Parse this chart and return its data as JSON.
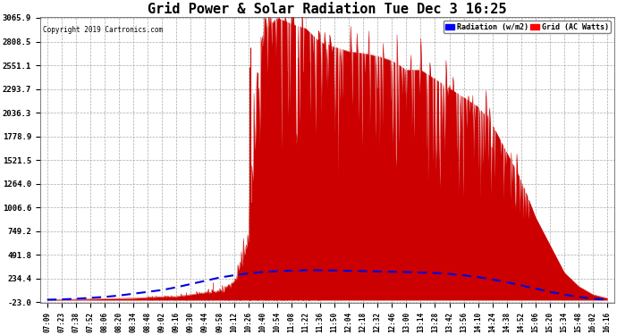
{
  "title": "Grid Power & Solar Radiation Tue Dec 3 16:25",
  "copyright": "Copyright 2019 Cartronics.com",
  "legend_labels": [
    "Radiation (w/m2)",
    "Grid (AC Watts)"
  ],
  "yticks": [
    -23.0,
    234.4,
    491.8,
    749.2,
    1006.6,
    1264.0,
    1521.5,
    1778.9,
    2036.3,
    2293.7,
    2551.1,
    2808.5,
    3065.9
  ],
  "ymin": -23.0,
  "ymax": 3065.9,
  "background_color": "#ffffff",
  "fill_color": "#cc0000",
  "line_color": "#0000dd",
  "title_fontsize": 11,
  "xtick_labels": [
    "07:09",
    "07:23",
    "07:38",
    "07:52",
    "08:06",
    "08:20",
    "08:34",
    "08:48",
    "09:02",
    "09:16",
    "09:30",
    "09:44",
    "09:58",
    "10:12",
    "10:26",
    "10:40",
    "10:54",
    "11:08",
    "11:22",
    "11:36",
    "11:50",
    "12:04",
    "12:18",
    "12:32",
    "12:46",
    "13:00",
    "13:14",
    "13:28",
    "13:42",
    "13:56",
    "14:10",
    "14:24",
    "14:38",
    "14:52",
    "15:06",
    "15:20",
    "15:34",
    "15:48",
    "16:02",
    "16:16"
  ],
  "figsize": [
    6.9,
    3.75
  ],
  "dpi": 100,
  "grid_power": [
    5,
    8,
    10,
    12,
    15,
    18,
    20,
    30,
    35,
    40,
    60,
    80,
    100,
    200,
    600,
    2900,
    3065,
    3000,
    2950,
    2800,
    2750,
    2700,
    2680,
    2650,
    2600,
    2500,
    2500,
    2400,
    2300,
    2200,
    2100,
    1900,
    1600,
    1300,
    900,
    600,
    300,
    150,
    60,
    20
  ],
  "radiation": [
    5,
    8,
    15,
    25,
    35,
    50,
    70,
    90,
    110,
    140,
    175,
    210,
    245,
    270,
    290,
    305,
    315,
    320,
    325,
    325,
    322,
    318,
    315,
    312,
    308,
    305,
    300,
    295,
    285,
    270,
    250,
    225,
    195,
    160,
    125,
    90,
    60,
    35,
    15,
    5
  ]
}
